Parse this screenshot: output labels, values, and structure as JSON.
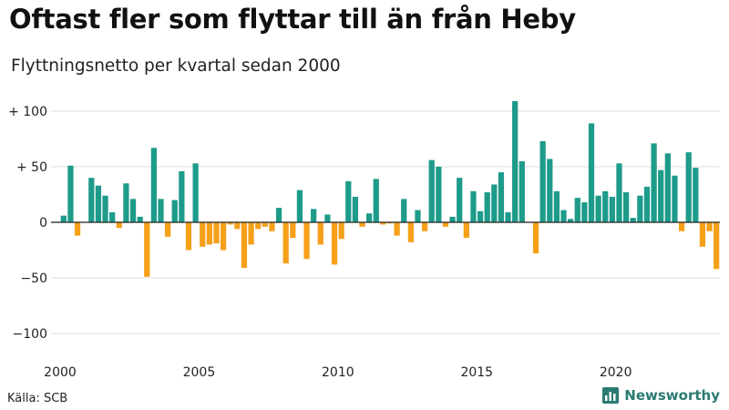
{
  "title": "Oftast fler som flyttar till än från Heby",
  "subtitle": "Flyttningsnetto per kvartal sedan 2000",
  "source": "Källa: SCB",
  "brand": "Newsworthy",
  "colors": {
    "positive": "#1e9b8a",
    "negative": "#f6a01a",
    "brand": "#2a7a72"
  },
  "chart_data": {
    "type": "bar",
    "title": "Oftast fler som flyttar till än från Heby",
    "subtitle": "Flyttningsnetto per kvartal sedan 2000",
    "ylim": [
      -110,
      112
    ],
    "y_ticks": [
      {
        "value": 100,
        "label": "+ 100"
      },
      {
        "value": 50,
        "label": "+  50"
      },
      {
        "value": 0,
        "label": "0"
      },
      {
        "value": -50,
        "label": "−50"
      },
      {
        "value": -100,
        "label": "−100"
      }
    ],
    "x_ticks": [
      {
        "year": 2000,
        "label": "2000"
      },
      {
        "year": 2005,
        "label": "2005"
      },
      {
        "year": 2010,
        "label": "2010"
      },
      {
        "year": 2015,
        "label": "2015"
      },
      {
        "year": 2020,
        "label": "2020"
      }
    ],
    "start_year": 2000,
    "grid": true,
    "values": [
      6,
      51,
      -12,
      0,
      40,
      33,
      24,
      9,
      -5,
      35,
      21,
      5,
      -49,
      67,
      21,
      -13,
      20,
      46,
      -25,
      53,
      -22,
      -20,
      -19,
      -25,
      -2,
      -6,
      -41,
      -20,
      -6,
      -4,
      -8,
      13,
      -37,
      -14,
      29,
      -33,
      12,
      -20,
      7,
      -38,
      -15,
      37,
      23,
      -4,
      8,
      39,
      -2,
      -1,
      -12,
      21,
      -18,
      11,
      -8,
      56,
      50,
      -4,
      5,
      40,
      -14,
      28,
      10,
      27,
      34,
      45,
      9,
      109,
      55,
      0,
      -28,
      73,
      57,
      28,
      11,
      3,
      22,
      18,
      89,
      24,
      28,
      23,
      53,
      27,
      4,
      24,
      32,
      71,
      47,
      62,
      42,
      -8,
      63,
      49,
      -22,
      -8,
      -42
    ]
  }
}
